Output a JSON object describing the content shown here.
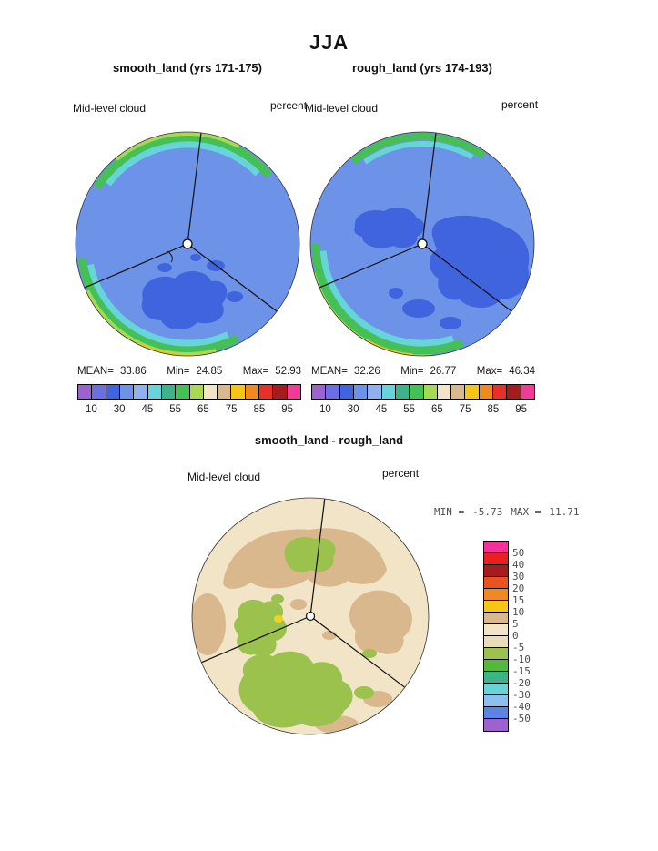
{
  "header": {
    "season_title": "JJA"
  },
  "panels": {
    "left": {
      "title": "smooth_land (yrs 171-175)",
      "var_label": "Mid-level cloud",
      "units_label": "percent",
      "stats": {
        "mean_label": "MEAN=",
        "mean_value": "33.86",
        "min_label": "Min=",
        "min_value": "24.85",
        "max_label": "Max=",
        "max_value": "52.93"
      }
    },
    "right": {
      "title": "rough_land (yrs 174-193)",
      "var_label": "Mid-level cloud",
      "units_label": "percent",
      "stats": {
        "mean_label": "MEAN=",
        "mean_value": "32.26",
        "min_label": "Min=",
        "min_value": "26.77",
        "max_label": "Max=",
        "max_value": "46.34"
      }
    },
    "diff": {
      "title": "smooth_land - rough_land",
      "var_label": "Mid-level cloud",
      "units_label": "percent",
      "stats": {
        "min_label": "MIN =",
        "min_value": "-5.73",
        "max_label": "MAX =",
        "max_value": "11.71"
      }
    }
  },
  "colorbar_h": {
    "tick_labels": [
      "10",
      "30",
      "45",
      "55",
      "65",
      "75",
      "85",
      "95"
    ],
    "colors": [
      "#9b62d0",
      "#6a6fe2",
      "#4064de",
      "#6c93e8",
      "#8fb2ee",
      "#66d4d8",
      "#3cb48a",
      "#44c054",
      "#a8d955",
      "#f2e4c6",
      "#d8b88c",
      "#f5c518",
      "#f08a1e",
      "#e8302a",
      "#a61b1b",
      "#f23b98"
    ]
  },
  "colorbar_v": {
    "labels": [
      "50",
      "40",
      "30",
      "20",
      "15",
      "10",
      "5",
      "0",
      "-5",
      "-10",
      "-15",
      "-20",
      "-30",
      "-40",
      "-50"
    ],
    "colors": [
      "#f5309a",
      "#e82020",
      "#a61b1b",
      "#e8541e",
      "#f08a1e",
      "#f5c518",
      "#d8b88c",
      "#f2e4c6",
      "#e9dcb8",
      "#9cc24e",
      "#55b83a",
      "#3cb48a",
      "#66d4d8",
      "#8cc0ee",
      "#5b84e4",
      "#9b62d0"
    ]
  },
  "map_colors": {
    "base_blue": "#6c93e8",
    "patch_blue": "#4064de",
    "rim_cyan": "#66d4d8",
    "rim_green": "#44c054",
    "rim_yellow_green": "#a8d955",
    "rim_yellow": "#f5c518",
    "diff_base_beige": "#f2e4c6",
    "diff_tan": "#d8b88c",
    "diff_green": "#9cc24e",
    "diff_yellow": "#f5d020"
  },
  "chart_data": [
    {
      "type": "heatmap",
      "subtype": "polar-stereographic contour map",
      "season": "JJA",
      "title": "smooth_land (yrs 171-175)",
      "variable": "Mid-level cloud",
      "units": "percent",
      "stats": {
        "mean": 33.86,
        "min": 24.85,
        "max": 52.93
      },
      "contour_tick_levels": [
        10,
        30,
        45,
        55,
        65,
        75,
        85,
        95
      ],
      "legend_position": "bottom",
      "pattern_notes": "mostly 30-40% blue field; lower 20-30% blue patches near bottom-center; 45-60% cyan/green/yellow-green bands along top and bottom-left rim"
    },
    {
      "type": "heatmap",
      "subtype": "polar-stereographic contour map",
      "season": "JJA",
      "title": "rough_land (yrs 174-193)",
      "variable": "Mid-level cloud",
      "units": "percent",
      "stats": {
        "mean": 32.26,
        "min": 26.77,
        "max": 46.34
      },
      "contour_tick_levels": [
        10,
        30,
        45,
        55,
        65,
        75,
        85,
        95
      ],
      "legend_position": "bottom",
      "pattern_notes": "mostly 30-40% blue field; darker patches upper-left of center, large patch on right side; rim bands along top and bottom-left"
    },
    {
      "type": "heatmap",
      "subtype": "polar-stereographic contour difference map",
      "season": "JJA",
      "title": "smooth_land - rough_land",
      "variable": "Mid-level cloud",
      "units": "percent",
      "stats": {
        "min": -5.73,
        "max": 11.71
      },
      "contour_tick_levels": [
        50,
        40,
        30,
        20,
        15,
        10,
        5,
        0,
        -5,
        -10,
        -15,
        -20,
        -30,
        -40,
        -50
      ],
      "legend_position": "right",
      "pattern_notes": "mostly 0-5 beige; +5-10 tan patches across top and right; -5 to -10 green patches left-center, top-center and across bottom; tiny 10-15 yellow spot left of center"
    }
  ]
}
